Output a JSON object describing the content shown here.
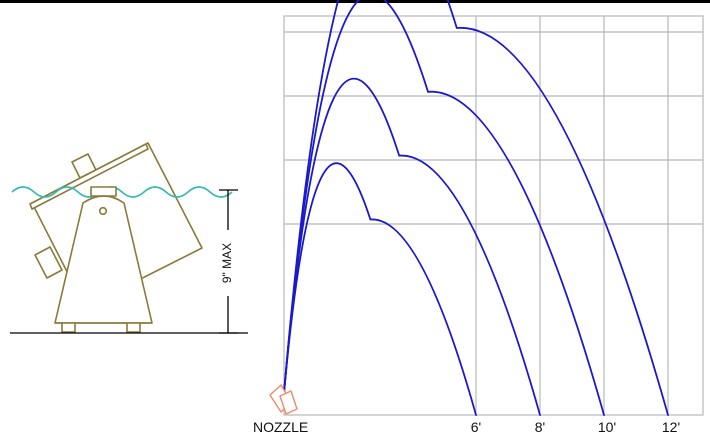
{
  "labels": {
    "nozzle": "NOZZLE",
    "depth": "9\" MAX"
  },
  "distance_ticks": [
    "6'",
    "8'",
    "10'",
    "12'"
  ],
  "chart_data": {
    "type": "line",
    "xlabel": "",
    "ylabel": "",
    "x_ticks": [
      "6'",
      "8'",
      "10'",
      "12'"
    ],
    "series": [
      {
        "distance_ft": 6,
        "max_height_fraction": 0.49
      },
      {
        "distance_ft": 8,
        "max_height_fraction": 0.65
      },
      {
        "distance_ft": 10,
        "max_height_fraction": 0.81
      },
      {
        "distance_ft": 12,
        "max_height_fraction": 0.97
      }
    ],
    "grid": true
  },
  "colors": {
    "jet": "#1a1acc",
    "grid": "#c2c2c2",
    "water": "#33bbb2",
    "unit": "#8a7a3a",
    "nozzle": "#f08a6a",
    "line": "#000000"
  }
}
